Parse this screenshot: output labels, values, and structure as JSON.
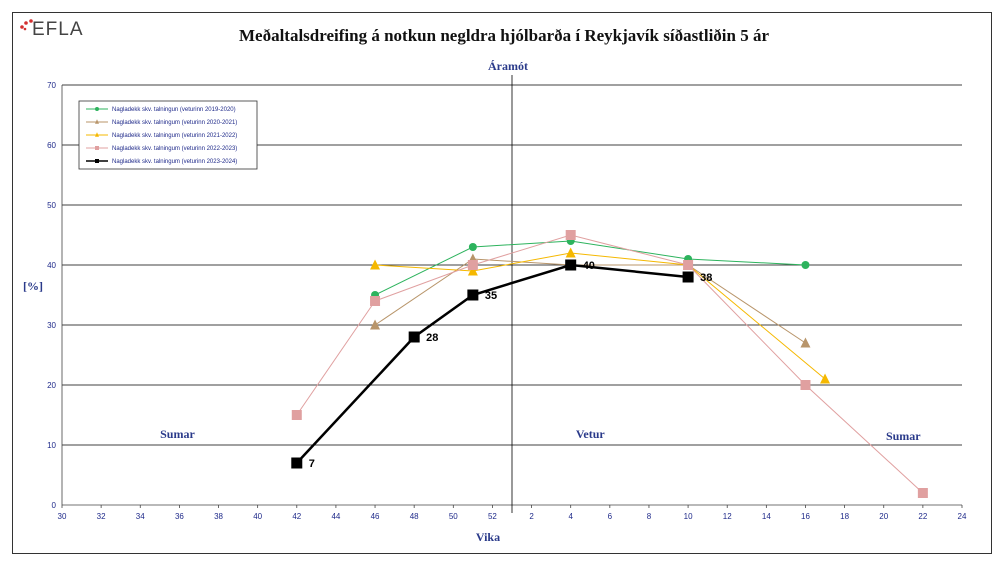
{
  "logo": {
    "text": "EFLA",
    "dot_color": "#d32f2f"
  },
  "chart_data": {
    "type": "line",
    "title": "Meðaltalsdreifing á notkun negldra hjólbarða í Reykjavík síðastliðin 5 ár",
    "xlabel": "Vika",
    "ylabel": "[%]",
    "ylim": [
      0,
      70
    ],
    "yticks": [
      "0",
      "10",
      "20",
      "30",
      "40",
      "50",
      "60",
      "70"
    ],
    "xtick_labels": [
      "30",
      "32",
      "34",
      "36",
      "38",
      "40",
      "42",
      "44",
      "46",
      "48",
      "50",
      "52",
      "2",
      "4",
      "6",
      "8",
      "10",
      "12",
      "14",
      "16",
      "18",
      "20",
      "22",
      "24"
    ],
    "grid": "horizontal",
    "legend_position": "top-left",
    "annotations": {
      "year_end": "Áramót",
      "summer_left": "Sumar",
      "winter": "Vetur",
      "summer_right": "Sumar"
    },
    "series": [
      {
        "name": "Nagladekk skv. talningun (veturinn 2019-2020)",
        "color": "#2db35d",
        "marker": "circle",
        "points": [
          [
            46,
            35
          ],
          [
            51,
            43
          ],
          [
            56,
            44
          ],
          [
            62,
            41
          ],
          [
            68,
            40
          ]
        ]
      },
      {
        "name": "Nagladekk skv. talningum (veturinn 2020-2021)",
        "color": "#b8956a",
        "marker": "triangle",
        "points": [
          [
            46,
            30
          ],
          [
            51,
            41
          ],
          [
            56,
            40
          ],
          [
            62,
            40
          ],
          [
            68,
            27
          ]
        ]
      },
      {
        "name": "Nagladekk skv. talningum (veturinn 2021-2022)",
        "color": "#f5b800",
        "marker": "triangle",
        "points": [
          [
            46,
            40
          ],
          [
            51,
            39
          ],
          [
            56,
            42
          ],
          [
            62,
            40
          ],
          [
            69,
            21
          ]
        ]
      },
      {
        "name": "Nagladekk skv. talningum (veturinn 2022-2023)",
        "color": "#e0a0a0",
        "marker": "square",
        "points": [
          [
            42,
            15
          ],
          [
            46,
            34
          ],
          [
            51,
            40
          ],
          [
            56,
            45
          ],
          [
            62,
            40
          ],
          [
            68,
            20
          ],
          [
            74,
            2
          ]
        ]
      },
      {
        "name": "Nagladekk skv. talningum (veturinn 2023-2024)",
        "color": "#000000",
        "marker": "square",
        "points": [
          [
            42,
            7
          ],
          [
            48,
            28
          ],
          [
            51,
            35
          ],
          [
            56,
            40
          ],
          [
            62,
            38
          ]
        ],
        "labels": [
          "7",
          "28",
          "35",
          "40",
          "38"
        ]
      }
    ]
  }
}
